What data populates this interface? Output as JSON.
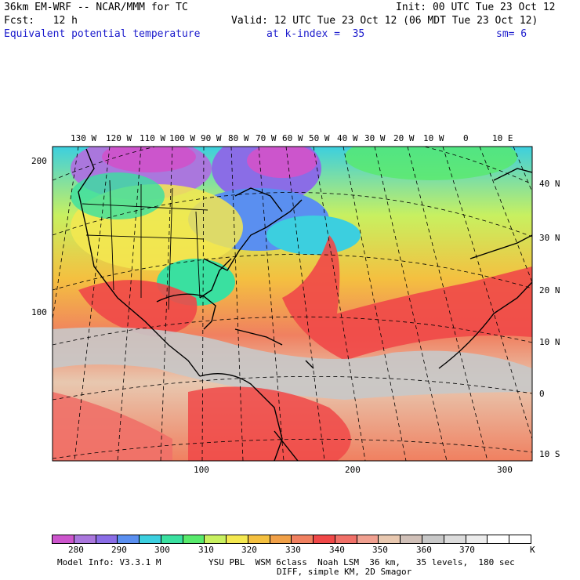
{
  "header": {
    "model": "36km EM-WRF -- NCAR/MMM for TC",
    "init": "Init: 00 UTC Tue 23 Oct 12",
    "fcst": "Fcst:   12 h",
    "valid": "Valid: 12 UTC Tue 23 Oct 12 (06 MDT Tue 23 Oct 12)",
    "field": "Equivalent potential temperature",
    "kindex": "at k-index =  35",
    "sm": "sm= 6"
  },
  "map": {
    "lon_labels": [
      "130 W",
      "120 W",
      "110 W",
      "100 W",
      "90 W",
      "80 W",
      "70 W",
      "60 W",
      "50 W",
      "40 W",
      "30 W",
      "20 W",
      "10 W",
      "0",
      "10 E"
    ],
    "lat_labels": [
      "40 N",
      "30 N",
      "20 N",
      "10 N",
      "0",
      "10 S"
    ],
    "left_ticks": [
      "200",
      "100"
    ],
    "bottom_ticks": [
      "100",
      "200",
      "300"
    ]
  },
  "colorbar": {
    "colors": [
      "#cc55cc",
      "#aa77dd",
      "#8a6de6",
      "#5a8ff0",
      "#3ccfdf",
      "#3ae0a0",
      "#58ea6c",
      "#c8f060",
      "#f4e850",
      "#f4c040",
      "#f0a048",
      "#f08060",
      "#f04848",
      "#f07068",
      "#f0a090",
      "#e8c8b0",
      "#d0c0b8",
      "#c8c8c8",
      "#dcdcdc",
      "#ececec",
      "#ffffff",
      "#ffffff"
    ],
    "labels": [
      "280",
      "290",
      "300",
      "310",
      "320",
      "330",
      "340",
      "350",
      "360",
      "370",
      "K"
    ]
  },
  "footer": {
    "model_info": "Model Info: V3.3.1 M",
    "physics": "YSU PBL  WSM 6class  Noah LSM  36 km,   35 levels,  180 sec",
    "diff": "DIFF, simple KM, 2D Smagor"
  }
}
